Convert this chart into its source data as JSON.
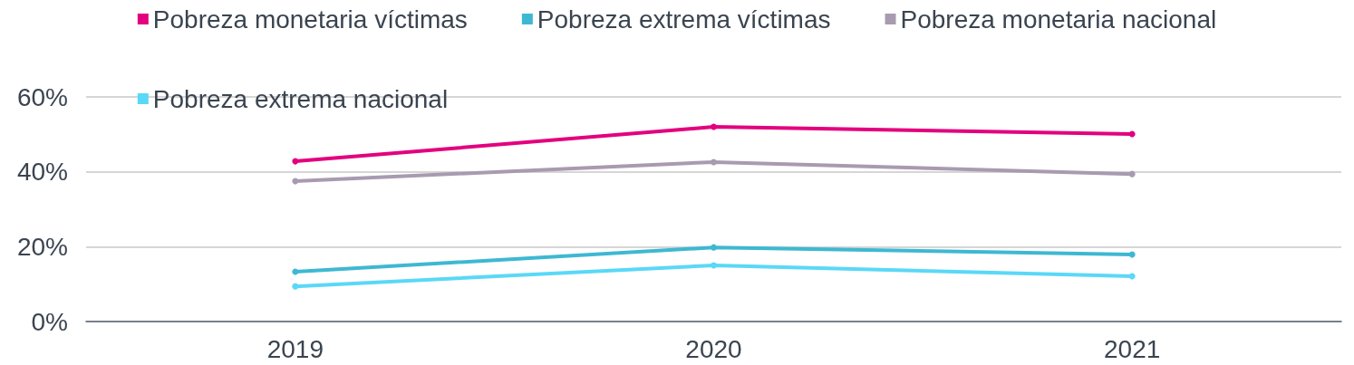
{
  "chart_data": {
    "type": "line",
    "categories": [
      "2019",
      "2020",
      "2021"
    ],
    "series": [
      {
        "name": "Pobreza monetaria víctimas",
        "color": "#e3007e",
        "values": [
          42.8,
          52.0,
          50.1
        ]
      },
      {
        "name": "Pobreza extrema víctimas",
        "color": "#3eb8d2",
        "values": [
          13.3,
          19.8,
          17.9
        ]
      },
      {
        "name": "Pobreza monetaria nacional",
        "color": "#a89bb0",
        "values": [
          37.5,
          42.6,
          39.4
        ]
      },
      {
        "name": "Pobreza extrema nacional",
        "color": "#5ad8f7",
        "values": [
          9.4,
          15.0,
          12.1
        ]
      }
    ],
    "ylim": [
      0,
      60
    ],
    "yticks": [
      {
        "value": 0,
        "label": "0%"
      },
      {
        "value": 20,
        "label": "20%"
      },
      {
        "value": 40,
        "label": "40%"
      },
      {
        "value": 60,
        "label": "60%"
      }
    ],
    "grid": "y",
    "legend": "top",
    "marker": "circle",
    "line_style": "solid"
  }
}
